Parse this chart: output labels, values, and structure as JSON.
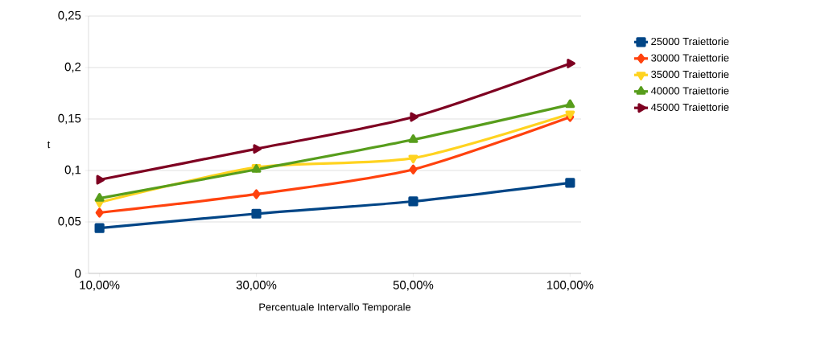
{
  "chart_data": {
    "type": "line",
    "xlabel": "Percentuale Intervallo Temporale",
    "ylabel": "t",
    "categories": [
      "10,00%",
      "30,00%",
      "50,00%",
      "100,00%"
    ],
    "series": [
      {
        "name": "25000 Traiettorie",
        "color": "#004586",
        "marker": "square",
        "values": [
          0.044,
          0.058,
          0.07,
          0.088
        ]
      },
      {
        "name": "30000 Traiettorie",
        "color": "#ff420e",
        "marker": "diamond",
        "values": [
          0.059,
          0.077,
          0.101,
          0.152
        ]
      },
      {
        "name": "35000 Traiettorie",
        "color": "#ffd320",
        "marker": "triangle-down",
        "values": [
          0.069,
          0.103,
          0.112,
          0.155
        ]
      },
      {
        "name": "40000 Traiettorie",
        "color": "#579d1c",
        "marker": "triangle",
        "values": [
          0.073,
          0.101,
          0.13,
          0.164
        ]
      },
      {
        "name": "45000 Traiettorie",
        "color": "#7e0021",
        "marker": "triangle-right",
        "values": [
          0.091,
          0.121,
          0.152,
          0.204
        ]
      }
    ],
    "ylim": [
      0,
      0.25
    ],
    "yticks": [
      0,
      {
        "value": 0.05,
        "label": "0,05"
      },
      {
        "value": 0.1,
        "label": "0,1"
      },
      {
        "value": 0.15,
        "label": "0,15"
      },
      {
        "value": 0.2,
        "label": "0,2"
      },
      {
        "value": 0.25,
        "label": "0,25"
      }
    ],
    "grid": "y",
    "legend": "right",
    "line_style": "solid"
  }
}
